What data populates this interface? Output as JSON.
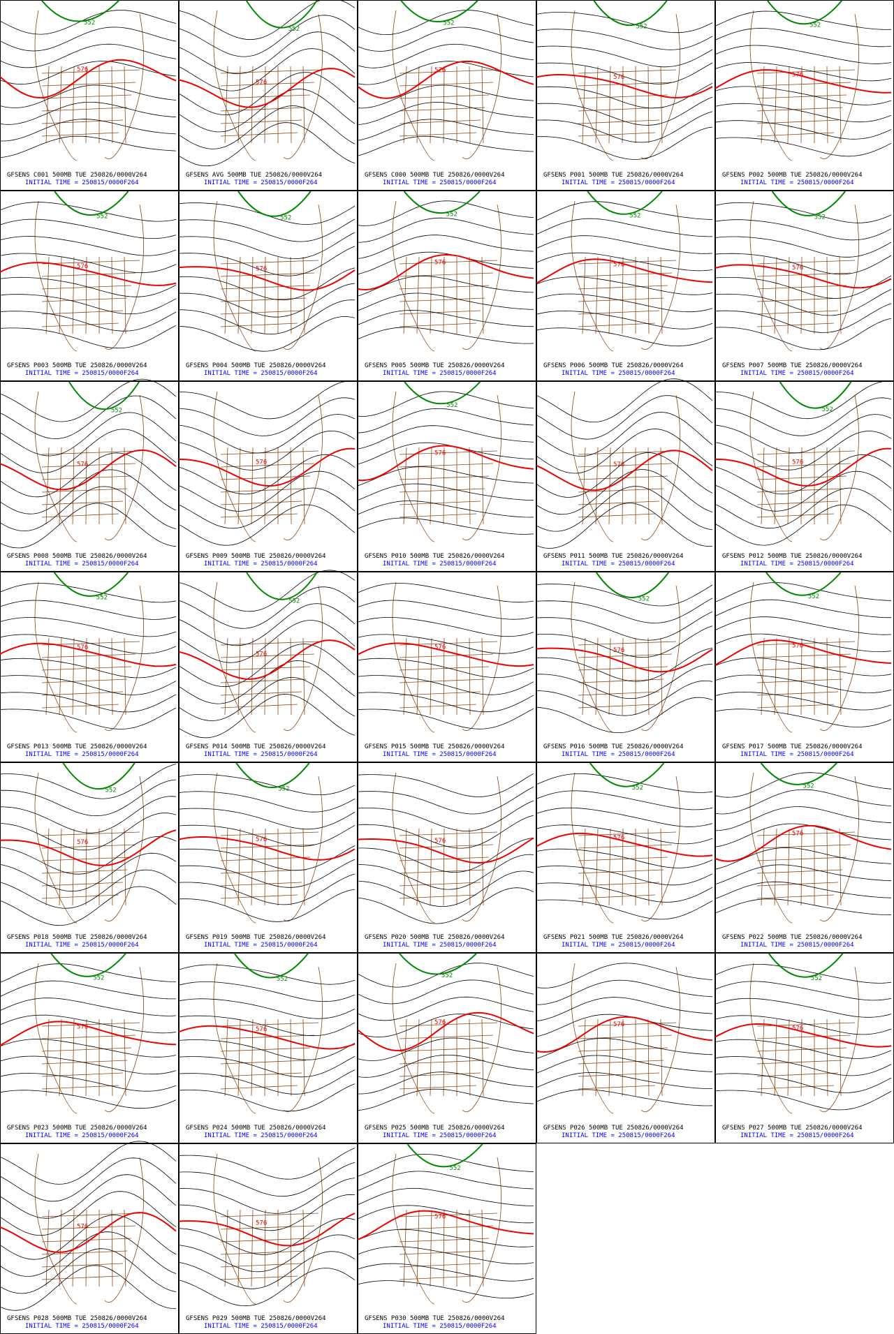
{
  "panels": [
    {
      "title": "GFSENS C001 500MB TUE 250826/0000V264",
      "initial_time": "INITIAL TIME = 250815/0000F264",
      "contour_labels": [
        "576",
        "552"
      ]
    },
    {
      "title": "GFSENS AVG 500MB TUE 250826/0000V264",
      "initial_time": "INITIAL TIME = 250815/0000F264",
      "contour_labels": [
        "576",
        "552"
      ]
    },
    {
      "title": "GFSENS C000 500MB TUE 250826/0000V264",
      "initial_time": "INITIAL TIME = 250815/0000F264",
      "contour_labels": [
        "576",
        "552"
      ]
    },
    {
      "title": "GFSENS P001 500MB TUE 250826/0000V264",
      "initial_time": "INITIAL TIME = 250815/0000F264",
      "contour_labels": [
        "576",
        "552"
      ]
    },
    {
      "title": "GFSENS P002 500MB TUE 250826/0000V264",
      "initial_time": "INITIAL TIME = 250815/0000F264",
      "contour_labels": [
        "576",
        "552"
      ]
    },
    {
      "title": "GFSENS P003 500MB TUE 250826/0000V264",
      "initial_time": "INITIAL TIME = 250815/0000F264",
      "contour_labels": [
        "576",
        "552"
      ]
    },
    {
      "title": "GFSENS P004 500MB TUE 250826/0000V264",
      "initial_time": "INITIAL TIME = 250815/0000F264",
      "contour_labels": [
        "576",
        "552"
      ]
    },
    {
      "title": "GFSENS P005 500MB TUE 250826/0000V264",
      "initial_time": "INITIAL TIME = 250815/0000F264",
      "contour_labels": [
        "576",
        "552"
      ]
    },
    {
      "title": "GFSENS P006 500MB TUE 250826/0000V264",
      "initial_time": "INITIAL TIME = 250815/0000F264",
      "contour_labels": [
        "576",
        "552"
      ]
    },
    {
      "title": "GFSENS P007 500MB TUE 250826/0000V264",
      "initial_time": "INITIAL TIME = 250815/0000F264",
      "contour_labels": [
        "576",
        "552"
      ]
    },
    {
      "title": "GFSENS P008 500MB TUE 250826/0000V264",
      "initial_time": "INITIAL TIME = 250815/0000F264",
      "contour_labels": [
        "576",
        "552"
      ]
    },
    {
      "title": "GFSENS P009 500MB TUE 250826/0000V264",
      "initial_time": "INITIAL TIME = 250815/0000F264",
      "contour_labels": [
        "576"
      ]
    },
    {
      "title": "GFSENS P010 500MB TUE 250826/0000V264",
      "initial_time": "INITIAL TIME = 250815/0000F264",
      "contour_labels": [
        "576",
        "552"
      ]
    },
    {
      "title": "GFSENS P011 500MB TUE 250826/0000V264",
      "initial_time": "INITIAL TIME = 250815/0000F264",
      "contour_labels": [
        "576"
      ]
    },
    {
      "title": "GFSENS P012 500MB TUE 250826/0000V264",
      "initial_time": "INITIAL TIME = 250815/0000F264",
      "contour_labels": [
        "576",
        "552"
      ]
    },
    {
      "title": "GFSENS P013 500MB TUE 250826/0000V264",
      "initial_time": "INITIAL TIME = 250815/0000F264",
      "contour_labels": [
        "576",
        "552"
      ]
    },
    {
      "title": "GFSENS P014 500MB TUE 250826/0000V264",
      "initial_time": "INITIAL TIME = 250815/0000F264",
      "contour_labels": [
        "576",
        "552"
      ]
    },
    {
      "title": "GFSENS P015 500MB TUE 250826/0000V264",
      "initial_time": "INITIAL TIME = 250815/0000F264",
      "contour_labels": [
        "576"
      ]
    },
    {
      "title": "GFSENS P016 500MB TUE 250826/0000V264",
      "initial_time": "INITIAL TIME = 250815/0000F264",
      "contour_labels": [
        "576",
        "552"
      ]
    },
    {
      "title": "GFSENS P017 500MB TUE 250826/0000V264",
      "initial_time": "INITIAL TIME = 250815/0000F264",
      "contour_labels": [
        "576",
        "552"
      ]
    },
    {
      "title": "GFSENS P018 500MB TUE 250826/0000V264",
      "initial_time": "INITIAL TIME = 250815/0000F264",
      "contour_labels": [
        "576",
        "552"
      ]
    },
    {
      "title": "GFSENS P019 500MB TUE 250826/0000V264",
      "initial_time": "INITIAL TIME = 250815/0000F264",
      "contour_labels": [
        "576",
        "552"
      ]
    },
    {
      "title": "GFSENS P020 500MB TUE 250826/0000V264",
      "initial_time": "INITIAL TIME = 250815/0000F264",
      "contour_labels": [
        "576"
      ]
    },
    {
      "title": "GFSENS P021 500MB TUE 250826/0000V264",
      "initial_time": "INITIAL TIME = 250815/0000F264",
      "contour_labels": [
        "576",
        "552"
      ]
    },
    {
      "title": "GFSENS P022 500MB TUE 250826/0000V264",
      "initial_time": "INITIAL TIME = 250815/0000F264",
      "contour_labels": [
        "576",
        "552"
      ]
    },
    {
      "title": "GFSENS P023 500MB TUE 250826/0000V264",
      "initial_time": "INITIAL TIME = 250815/0000F264",
      "contour_labels": [
        "576",
        "552"
      ]
    },
    {
      "title": "GFSENS P024 500MB TUE 250826/0000V264",
      "initial_time": "INITIAL TIME = 250815/0000F264",
      "contour_labels": [
        "576",
        "552"
      ]
    },
    {
      "title": "GFSENS P025 500MB TUE 250826/0000V264",
      "initial_time": "INITIAL TIME = 250815/0000F264",
      "contour_labels": [
        "576",
        "552"
      ]
    },
    {
      "title": "GFSENS P026 500MB TUE 250826/0000V264",
      "initial_time": "INITIAL TIME = 250815/0000F264",
      "contour_labels": [
        "576"
      ]
    },
    {
      "title": "GFSENS P027 500MB TUE 250826/0000V264",
      "initial_time": "INITIAL TIME = 250815/0000F264",
      "contour_labels": [
        "576",
        "552"
      ]
    },
    {
      "title": "GFSENS P028 500MB TUE 250826/0000V264",
      "initial_time": "INITIAL TIME = 250815/0000F264",
      "contour_labels": [
        "576"
      ]
    },
    {
      "title": "GFSENS P029 500MB TUE 250826/0000V264",
      "initial_time": "INITIAL TIME = 250815/0000F264",
      "contour_labels": [
        "576"
      ]
    },
    {
      "title": "GFSENS P030 500MB TUE 250826/0000V264",
      "initial_time": "INITIAL TIME = 250815/0000F264",
      "contour_labels": [
        "576",
        "552"
      ]
    }
  ]
}
